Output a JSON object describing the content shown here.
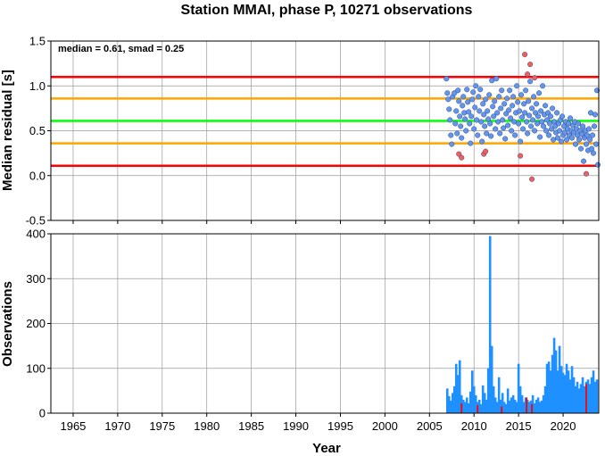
{
  "chart_data": [
    {
      "type": "scatter",
      "title": "Station MMAI, phase P, 10271 observations",
      "xlabel": "",
      "ylabel": "Median residual [s]",
      "xlim": [
        1962.5,
        2024
      ],
      "ylim": [
        -0.5,
        1.5
      ],
      "yticks": [
        "-0.5",
        "0.0",
        "0.5",
        "1.0",
        "1.5"
      ],
      "grid": true,
      "annotation": "median = 0.61, smad = 0.25",
      "reference_lines": [
        {
          "y": 1.1,
          "color": "#ff0000"
        },
        {
          "y": 0.86,
          "color": "#ffa500"
        },
        {
          "y": 0.61,
          "color": "#00ff00"
        },
        {
          "y": 0.36,
          "color": "#ffa500"
        },
        {
          "y": 0.11,
          "color": "#ff0000"
        }
      ],
      "series": [
        {
          "color": "#6495ed",
          "points": [
            [
              2006.9,
              1.08
            ],
            [
              2007.0,
              0.92
            ],
            [
              2007.1,
              0.85
            ],
            [
              2007.2,
              0.74
            ],
            [
              2007.3,
              0.62
            ],
            [
              2007.4,
              0.45
            ],
            [
              2007.5,
              0.35
            ],
            [
              2007.6,
              0.88
            ],
            [
              2007.8,
              0.92
            ],
            [
              2007.9,
              0.58
            ],
            [
              2008.0,
              0.72
            ],
            [
              2008.1,
              0.47
            ],
            [
              2008.2,
              0.95
            ],
            [
              2008.3,
              0.83
            ],
            [
              2008.4,
              0.66
            ],
            [
              2008.5,
              0.55
            ],
            [
              2008.6,
              0.42
            ],
            [
              2008.7,
              0.78
            ],
            [
              2008.8,
              0.88
            ],
            [
              2008.9,
              0.7
            ],
            [
              2009.0,
              0.63
            ],
            [
              2009.1,
              0.5
            ],
            [
              2009.2,
              0.96
            ],
            [
              2009.3,
              0.82
            ],
            [
              2009.4,
              0.71
            ],
            [
              2009.5,
              0.58
            ],
            [
              2009.6,
              0.36
            ],
            [
              2009.7,
              0.66
            ],
            [
              2009.8,
              0.85
            ],
            [
              2009.9,
              0.93
            ],
            [
              2010.0,
              0.52
            ],
            [
              2010.1,
              0.76
            ],
            [
              2010.2,
              1.0
            ],
            [
              2010.3,
              0.62
            ],
            [
              2010.4,
              0.45
            ],
            [
              2010.5,
              0.88
            ],
            [
              2010.6,
              0.72
            ],
            [
              2010.7,
              0.96
            ],
            [
              2010.8,
              0.6
            ],
            [
              2010.9,
              0.38
            ],
            [
              2011.0,
              0.8
            ],
            [
              2011.1,
              0.68
            ],
            [
              2011.2,
              0.55
            ],
            [
              2011.3,
              0.85
            ],
            [
              2011.4,
              0.47
            ],
            [
              2011.5,
              0.72
            ],
            [
              2011.6,
              0.63
            ],
            [
              2011.7,
              0.9
            ],
            [
              2011.8,
              0.58
            ],
            [
              2011.9,
              0.44
            ],
            [
              2012.0,
              1.06
            ],
            [
              2012.1,
              0.77
            ],
            [
              2012.2,
              0.66
            ],
            [
              2012.3,
              0.83
            ],
            [
              2012.4,
              0.52
            ],
            [
              2012.5,
              1.08
            ],
            [
              2012.6,
              0.7
            ],
            [
              2012.7,
              0.6
            ],
            [
              2012.8,
              0.88
            ],
            [
              2012.9,
              0.47
            ],
            [
              2013.0,
              0.75
            ],
            [
              2013.1,
              0.95
            ],
            [
              2013.2,
              0.62
            ],
            [
              2013.3,
              0.53
            ],
            [
              2013.4,
              0.8
            ],
            [
              2013.5,
              0.41
            ],
            [
              2013.6,
              0.69
            ],
            [
              2013.7,
              0.86
            ],
            [
              2013.8,
              0.56
            ],
            [
              2013.9,
              0.73
            ],
            [
              2014.0,
              0.95
            ],
            [
              2014.1,
              0.64
            ],
            [
              2014.2,
              0.5
            ],
            [
              2014.3,
              0.78
            ],
            [
              2014.4,
              0.88
            ],
            [
              2014.5,
              0.6
            ],
            [
              2014.6,
              0.45
            ],
            [
              2014.7,
              0.7
            ],
            [
              2014.8,
              1.0
            ],
            [
              2014.9,
              0.82
            ],
            [
              2015.0,
              0.58
            ],
            [
              2015.1,
              0.72
            ],
            [
              2015.2,
              0.38
            ],
            [
              2015.3,
              0.9
            ],
            [
              2015.4,
              0.65
            ],
            [
              2015.5,
              0.52
            ],
            [
              2015.6,
              0.8
            ],
            [
              2015.7,
              0.7
            ],
            [
              2015.8,
              0.95
            ],
            [
              2015.9,
              0.6
            ],
            [
              2016.0,
              0.47
            ],
            [
              2016.1,
              0.83
            ],
            [
              2016.2,
              0.67
            ],
            [
              2016.3,
              1.05
            ],
            [
              2016.4,
              0.55
            ],
            [
              2016.5,
              0.75
            ],
            [
              2016.6,
              0.62
            ],
            [
              2016.7,
              0.88
            ],
            [
              2016.8,
              0.5
            ],
            [
              2016.9,
              0.7
            ],
            [
              2017.0,
              0.8
            ],
            [
              2017.1,
              0.58
            ],
            [
              2017.2,
              0.66
            ],
            [
              2017.3,
              0.92
            ],
            [
              2017.4,
              0.43
            ],
            [
              2017.5,
              0.72
            ],
            [
              2017.6,
              0.6
            ],
            [
              2017.7,
              1.0
            ],
            [
              2017.8,
              0.55
            ],
            [
              2017.9,
              0.68
            ],
            [
              2018.0,
              0.78
            ],
            [
              2018.1,
              0.5
            ],
            [
              2018.2,
              0.62
            ],
            [
              2018.3,
              0.7
            ],
            [
              2018.4,
              0.45
            ],
            [
              2018.5,
              0.58
            ],
            [
              2018.6,
              0.66
            ],
            [
              2018.7,
              0.52
            ],
            [
              2018.8,
              0.75
            ],
            [
              2018.9,
              0.4
            ],
            [
              2019.0,
              0.6
            ],
            [
              2019.1,
              0.55
            ],
            [
              2019.2,
              0.48
            ],
            [
              2019.3,
              0.7
            ],
            [
              2019.4,
              0.42
            ],
            [
              2019.5,
              0.58
            ],
            [
              2019.6,
              0.5
            ],
            [
              2019.7,
              0.62
            ],
            [
              2019.8,
              0.38
            ],
            [
              2019.9,
              0.66
            ],
            [
              2020.0,
              0.45
            ],
            [
              2020.1,
              0.55
            ],
            [
              2020.2,
              0.48
            ],
            [
              2020.3,
              0.6
            ],
            [
              2020.4,
              0.4
            ],
            [
              2020.5,
              0.52
            ],
            [
              2020.6,
              0.58
            ],
            [
              2020.7,
              0.45
            ],
            [
              2020.8,
              0.64
            ],
            [
              2020.9,
              0.5
            ],
            [
              2021.0,
              0.42
            ],
            [
              2021.1,
              0.56
            ],
            [
              2021.2,
              0.48
            ],
            [
              2021.3,
              0.6
            ],
            [
              2021.4,
              0.35
            ],
            [
              2021.5,
              0.52
            ],
            [
              2021.6,
              0.45
            ],
            [
              2021.7,
              0.58
            ],
            [
              2021.8,
              0.4
            ],
            [
              2021.9,
              0.5
            ],
            [
              2022.0,
              0.3
            ],
            [
              2022.1,
              0.46
            ],
            [
              2022.2,
              0.55
            ],
            [
              2022.3,
              0.16
            ],
            [
              2022.4,
              0.42
            ],
            [
              2022.5,
              0.5
            ],
            [
              2022.6,
              0.35
            ],
            [
              2022.7,
              0.45
            ],
            [
              2022.8,
              0.28
            ],
            [
              2022.9,
              0.52
            ],
            [
              2023.0,
              0.4
            ],
            [
              2023.1,
              0.7
            ],
            [
              2023.2,
              0.3
            ],
            [
              2023.3,
              0.45
            ],
            [
              2023.4,
              0.25
            ],
            [
              2023.5,
              0.55
            ],
            [
              2023.6,
              0.68
            ],
            [
              2023.7,
              0.35
            ],
            [
              2023.8,
              0.95
            ],
            [
              2023.9,
              0.12
            ]
          ]
        },
        {
          "color": "#f45f5a",
          "points": [
            [
              2008.3,
              0.24
            ],
            [
              2008.6,
              0.2
            ],
            [
              2011.1,
              0.24
            ],
            [
              2011.3,
              0.27
            ],
            [
              2015.2,
              0.22
            ],
            [
              2015.7,
              1.35
            ],
            [
              2016.0,
              1.13
            ],
            [
              2016.3,
              1.24
            ],
            [
              2016.5,
              -0.04
            ],
            [
              2016.8,
              1.09
            ],
            [
              2022.6,
              0.02
            ]
          ]
        }
      ]
    },
    {
      "type": "bar",
      "title": "",
      "xlabel": "Year",
      "ylabel": "Observations",
      "xlim": [
        1962.5,
        2024
      ],
      "ylim": [
        0,
        400
      ],
      "xticks": [
        "1965",
        "1970",
        "1975",
        "1980",
        "1985",
        "1990",
        "1995",
        "2000",
        "2005",
        "2010",
        "2015",
        "2020"
      ],
      "yticks": [
        "0",
        "100",
        "200",
        "300",
        "400"
      ],
      "grid": true,
      "series": [
        {
          "color": "#1e90ff",
          "x": [
            2007.0,
            2007.2,
            2007.4,
            2007.6,
            2007.8,
            2008.0,
            2008.2,
            2008.4,
            2008.6,
            2008.8,
            2009.0,
            2009.2,
            2009.4,
            2009.6,
            2009.8,
            2010.0,
            2010.2,
            2010.4,
            2010.6,
            2010.8,
            2011.0,
            2011.2,
            2011.4,
            2011.6,
            2011.8,
            2012.0,
            2012.2,
            2012.4,
            2012.6,
            2012.8,
            2013.0,
            2013.2,
            2013.4,
            2013.6,
            2013.8,
            2014.0,
            2014.2,
            2014.4,
            2014.6,
            2014.8,
            2015.0,
            2015.2,
            2015.4,
            2015.6,
            2015.8,
            2016.0,
            2016.2,
            2016.4,
            2016.6,
            2016.8,
            2017.0,
            2017.2,
            2017.4,
            2017.6,
            2017.8,
            2018.0,
            2018.2,
            2018.4,
            2018.6,
            2018.8,
            2019.0,
            2019.2,
            2019.4,
            2019.6,
            2019.8,
            2020.0,
            2020.2,
            2020.4,
            2020.6,
            2020.8,
            2021.0,
            2021.2,
            2021.4,
            2021.6,
            2021.8,
            2022.0,
            2022.2,
            2022.4,
            2022.6,
            2022.8,
            2023.0,
            2023.2,
            2023.4,
            2023.6,
            2023.8
          ],
          "values": [
            55,
            38,
            28,
            45,
            60,
            110,
            85,
            118,
            40,
            30,
            25,
            35,
            22,
            48,
            95,
            60,
            40,
            25,
            30,
            20,
            62,
            45,
            30,
            100,
            395,
            150,
            60,
            35,
            25,
            80,
            30,
            45,
            25,
            20,
            55,
            28,
            35,
            40,
            30,
            25,
            110,
            60,
            40,
            25,
            35,
            30,
            25,
            28,
            40,
            22,
            30,
            35,
            25,
            28,
            40,
            60,
            110,
            115,
            95,
            130,
            168,
            140,
            95,
            150,
            105,
            90,
            85,
            110,
            95,
            75,
            105,
            80,
            60,
            70,
            55,
            65,
            80,
            60,
            70,
            75,
            65,
            80,
            95,
            70,
            75
          ]
        },
        {
          "color": "#ff0000",
          "x": [
            2008.6,
            2010.4,
            2013.1,
            2015.9,
            2016.5,
            2022.6
          ],
          "values": [
            22,
            18,
            15,
            35,
            20,
            65
          ]
        }
      ]
    }
  ]
}
